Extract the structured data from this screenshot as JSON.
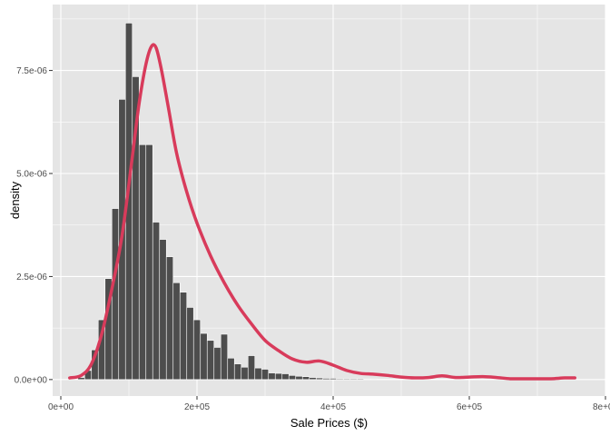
{
  "chart_data": {
    "type": "histogram",
    "xlabel": "Sale Prices ($)",
    "ylabel": "density",
    "xlim": [
      -12000,
      800000
    ],
    "ylim": [
      -4e-07,
      9.1e-06
    ],
    "x_ticks": [
      {
        "value": 0,
        "label": "0e+00"
      },
      {
        "value": 200000,
        "label": "2e+05"
      },
      {
        "value": 400000,
        "label": "4e+05"
      },
      {
        "value": 600000,
        "label": "6e+05"
      },
      {
        "value": 800000,
        "label": "8e+05"
      }
    ],
    "y_ticks": [
      {
        "value": 0,
        "label": "0.0e+00"
      },
      {
        "value": 2.5e-06,
        "label": "2.5e-06"
      },
      {
        "value": 5e-06,
        "label": "5.0e-06"
      },
      {
        "value": 7.5e-06,
        "label": "7.5e-06"
      }
    ],
    "grid": true,
    "bin_start": 25000,
    "bin_width": 10000,
    "densities": [
      5e-08,
      2.2e-07,
      7.2e-07,
      1.45e-06,
      2.45e-06,
      4.15e-06,
      6.8e-06,
      8.65e-06,
      7.35e-06,
      5.7e-06,
      5.7e-06,
      3.82e-06,
      3.4e-06,
      2.98e-06,
      2.35e-06,
      2.12e-06,
      1.75e-06,
      1.45e-06,
      1.12e-06,
      9.5e-07,
      7.8e-07,
      1.1e-06,
      5.2e-07,
      3.8e-07,
      3e-07,
      5.8e-07,
      2.8e-07,
      2.5e-07,
      1.6e-07,
      1.5e-07,
      1.4e-07,
      1e-07,
      8e-08,
      7e-08,
      5e-08,
      4e-08,
      3e-08,
      3e-08,
      2e-08,
      2e-08,
      2e-08,
      2e-08,
      1.5e-08,
      1.5e-08,
      1e-08,
      1e-08,
      1e-08,
      1e-08,
      1e-08,
      8e-09,
      8e-09,
      8e-09,
      6e-09,
      6e-09,
      6e-09,
      5e-09,
      5e-09,
      5e-09,
      4e-09,
      4e-09,
      4e-09,
      4e-09,
      4e-09,
      4e-09,
      4e-09,
      4e-09,
      4e-09,
      4e-09,
      4e-09,
      4e-09,
      4e-09,
      4e-09,
      4e-09
    ],
    "density_curve": {
      "x": [
        13000,
        30000,
        45000,
        60000,
        75000,
        90000,
        105000,
        115000,
        125000,
        133000,
        140000,
        148000,
        158000,
        170000,
        185000,
        200000,
        220000,
        240000,
        260000,
        280000,
        300000,
        320000,
        340000,
        360000,
        380000,
        400000,
        420000,
        440000,
        460000,
        480000,
        500000,
        520000,
        540000,
        560000,
        580000,
        600000,
        620000,
        640000,
        660000,
        680000,
        700000,
        720000,
        740000,
        755000
      ],
      "y": [
        4e-08,
        1e-07,
        3.8e-07,
        1.1e-06,
        2.2e-06,
        3.5e-06,
        5.4e-06,
        6.7e-06,
        7.65e-06,
        8.08e-06,
        8.05e-06,
        7.5e-06,
        6.6e-06,
        5.5e-06,
        4.55e-06,
        3.8e-06,
        3e-06,
        2.35e-06,
        1.8e-06,
        1.35e-06,
        9.5e-07,
        7e-07,
        5e-07,
        4.2e-07,
        4.5e-07,
        3.5e-07,
        2.2e-07,
        1.5e-07,
        1.3e-07,
        1e-07,
        6e-08,
        4e-08,
        5e-08,
        9e-08,
        5e-08,
        6e-08,
        7e-08,
        5e-08,
        2e-08,
        2e-08,
        2e-08,
        2e-08,
        4e-08,
        4e-08
      ]
    },
    "colors": {
      "panel_background": "#e5e5e5",
      "grid": "#ffffff",
      "bar_fill": "#4d4d4d",
      "bar_outline": "#ffffff",
      "curve": "#d83b5b"
    }
  }
}
